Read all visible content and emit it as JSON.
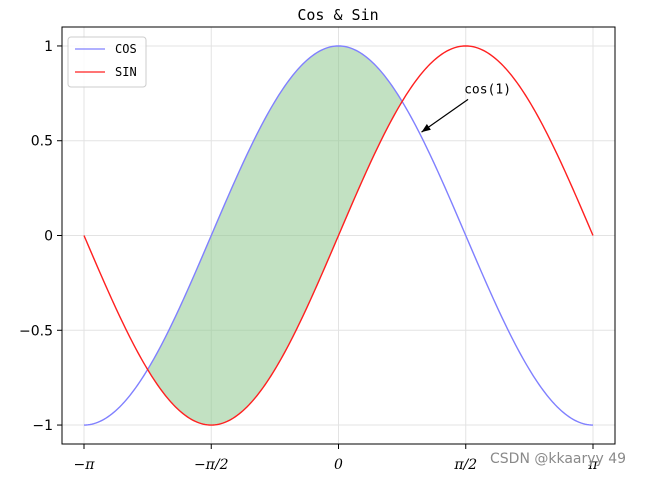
{
  "chart_data": {
    "type": "line",
    "title": "Cos & Sin",
    "xlim": [
      -3.14159,
      3.14159
    ],
    "ylim": [
      -1.1,
      1.1
    ],
    "x_ticks": [
      {
        "value": -3.14159,
        "label": "−π"
      },
      {
        "value": -1.5708,
        "label": "−π/2"
      },
      {
        "value": 0,
        "label": "0"
      },
      {
        "value": 1.5708,
        "label": "π/2"
      },
      {
        "value": 3.14159,
        "label": "π"
      }
    ],
    "y_ticks": [
      {
        "value": 1,
        "label": "1"
      },
      {
        "value": 0.5,
        "label": "0.5"
      },
      {
        "value": 0,
        "label": "0"
      },
      {
        "value": -0.5,
        "label": "−0.5"
      },
      {
        "value": -1,
        "label": "−1"
      }
    ],
    "grid": true,
    "legend_position": "upper-left",
    "series": [
      {
        "name": "COS",
        "function": "cos",
        "color": "#8080ff",
        "x_range": [
          -3.14159,
          3.14159
        ]
      },
      {
        "name": "SIN",
        "function": "sin",
        "color": "#ff2020",
        "x_range": [
          -3.14159,
          3.14159
        ]
      }
    ],
    "fill_between": {
      "series": [
        "COS",
        "SIN"
      ],
      "where": "COS > SIN",
      "color": "#8fc98f",
      "alpha": 0.55
    },
    "annotation": {
      "text": "cos(1)",
      "point": [
        1,
        0.5403
      ],
      "text_position": [
        1.55,
        0.75
      ]
    }
  },
  "watermark": "CSDN @kkaaryy 49"
}
